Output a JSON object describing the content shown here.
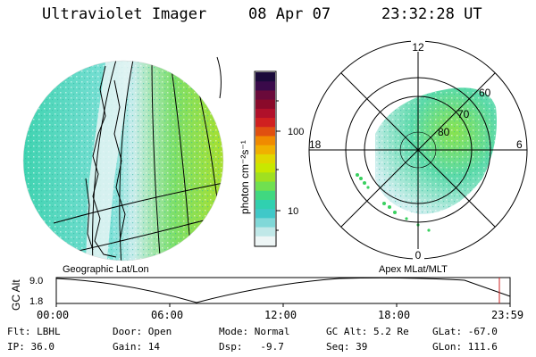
{
  "header": {
    "instrument": "Ultraviolet Imager",
    "date": "08 Apr 07",
    "time": "23:32:28 UT"
  },
  "colorbar": {
    "unit_label": "photon cm⁻²s⁻¹",
    "ticks": [
      "100",
      "10"
    ],
    "colors": [
      "#1a0a3a",
      "#3a0a4a",
      "#6a0a3a",
      "#8a0a2a",
      "#b0102a",
      "#d02020",
      "#e05010",
      "#f08a00",
      "#f0b000",
      "#e0d800",
      "#c8e800",
      "#a0e020",
      "#70e050",
      "#40d880",
      "#30d0b0",
      "#40c8c8",
      "#80d8d8",
      "#c0e8e8",
      "#eef6f6"
    ]
  },
  "left_map": {
    "caption": "Geographic Lat/Lon"
  },
  "right_map": {
    "caption": "Apex MLat/MLT",
    "mlt_labels": {
      "top": "12",
      "left": "18",
      "right": "6",
      "bottom": "0"
    },
    "lat_labels": [
      "60",
      "70",
      "80"
    ]
  },
  "timeline": {
    "ylabel": "GC Alt",
    "y_ticks": [
      "9.0",
      "1.8"
    ],
    "x_ticks": [
      "00:00",
      "06:00",
      "12:00",
      "18:00",
      "23:59"
    ],
    "marker_color": "#cc2020"
  },
  "info": {
    "flt": "Flt: LBHL",
    "ip": "IP: 36.0",
    "door": "Door: Open",
    "gain": "Gain: 14",
    "mode": "Mode: Normal",
    "dsp": "Dsp:   -9.7",
    "gc_alt": "GC Alt: 5.2 Re",
    "seq": "Seq: 39",
    "glat": "GLat: -67.0",
    "glon": "GLon: 111.6"
  }
}
